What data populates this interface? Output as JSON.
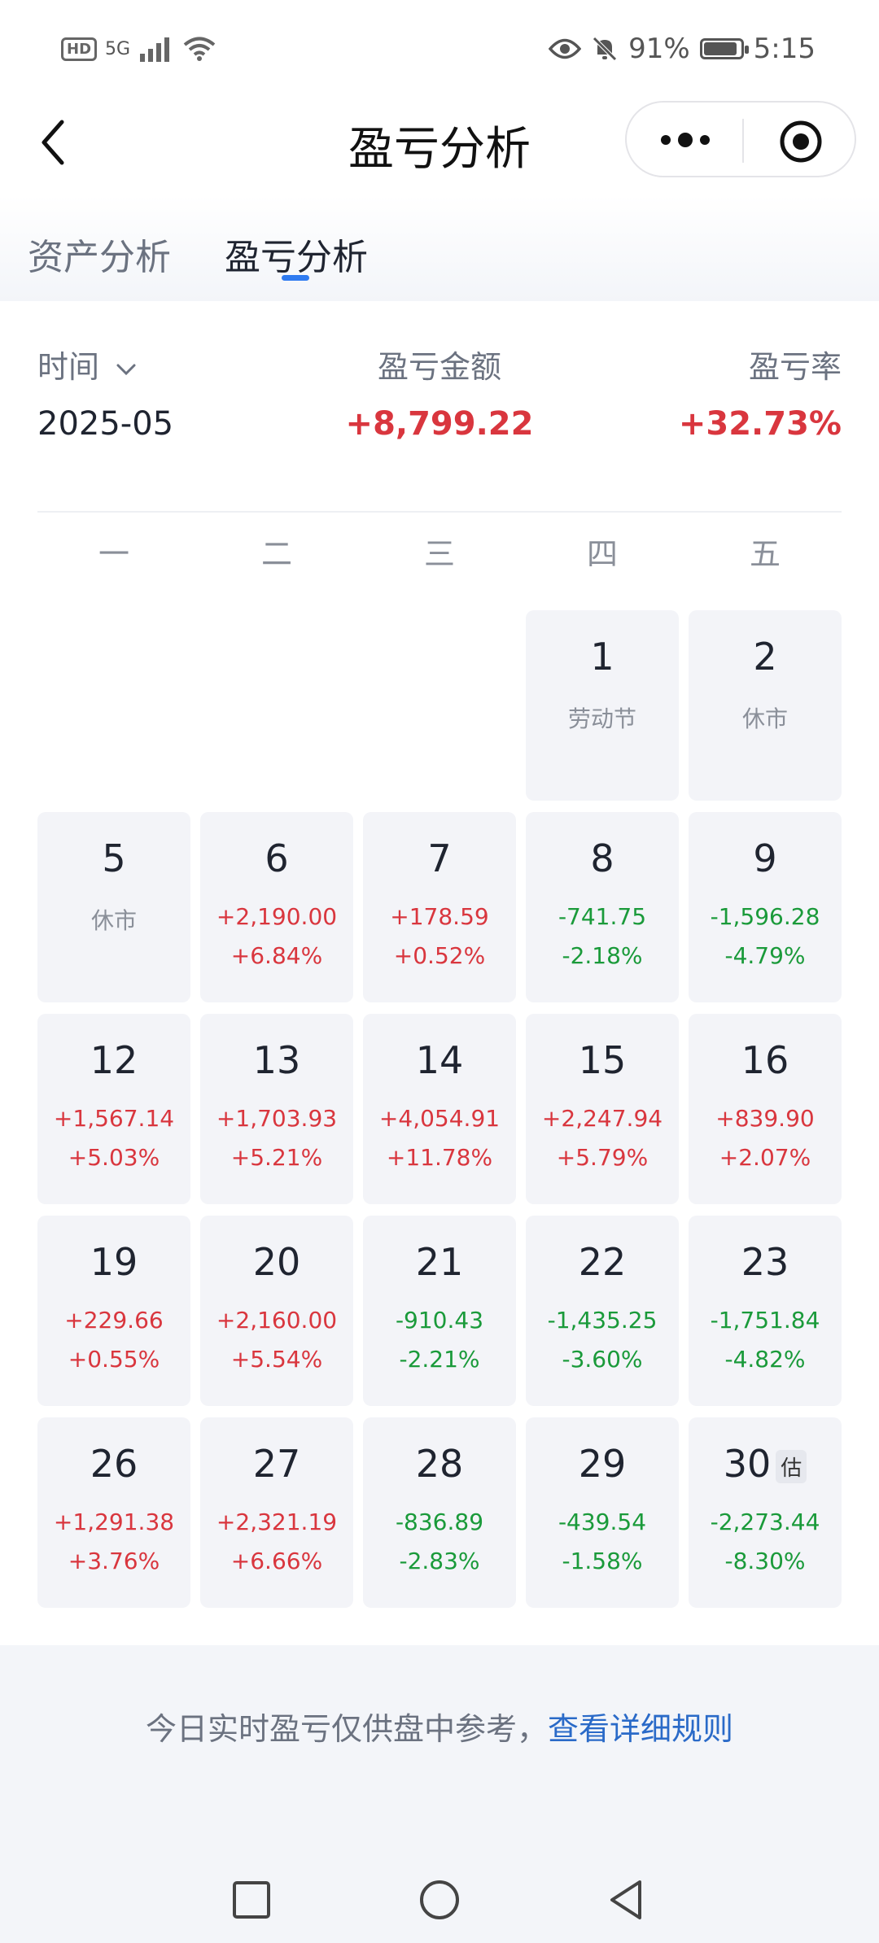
{
  "status_bar": {
    "hd": "HD",
    "net": "5G",
    "battery_pct": "91%",
    "battery_level": 0.91,
    "time": "5:15"
  },
  "nav": {
    "title": "盈亏分析"
  },
  "tabs": [
    {
      "label": "资产分析"
    },
    {
      "label": "盈亏分析"
    }
  ],
  "summary": {
    "time_label": "时间",
    "amount_label": "盈亏金额",
    "rate_label": "盈亏率",
    "month": "2025-05",
    "amount": "+8,799.22",
    "rate": "+32.73%"
  },
  "weekdays": [
    "一",
    "二",
    "三",
    "四",
    "五"
  ],
  "calendar": [
    {
      "day": "1",
      "note": "劳动节"
    },
    {
      "day": "2",
      "note": "休市"
    },
    {
      "day": "5",
      "note": "休市"
    },
    {
      "day": "6",
      "amount": "+2,190.00",
      "pct": "+6.84%",
      "trend": "up"
    },
    {
      "day": "7",
      "amount": "+178.59",
      "pct": "+0.52%",
      "trend": "up"
    },
    {
      "day": "8",
      "amount": "-741.75",
      "pct": "-2.18%",
      "trend": "down"
    },
    {
      "day": "9",
      "amount": "-1,596.28",
      "pct": "-4.79%",
      "trend": "down"
    },
    {
      "day": "12",
      "amount": "+1,567.14",
      "pct": "+5.03%",
      "trend": "up"
    },
    {
      "day": "13",
      "amount": "+1,703.93",
      "pct": "+5.21%",
      "trend": "up"
    },
    {
      "day": "14",
      "amount": "+4,054.91",
      "pct": "+11.78%",
      "trend": "up"
    },
    {
      "day": "15",
      "amount": "+2,247.94",
      "pct": "+5.79%",
      "trend": "up"
    },
    {
      "day": "16",
      "amount": "+839.90",
      "pct": "+2.07%",
      "trend": "up"
    },
    {
      "day": "19",
      "amount": "+229.66",
      "pct": "+0.55%",
      "trend": "up"
    },
    {
      "day": "20",
      "amount": "+2,160.00",
      "pct": "+5.54%",
      "trend": "up"
    },
    {
      "day": "21",
      "amount": "-910.43",
      "pct": "-2.21%",
      "trend": "down"
    },
    {
      "day": "22",
      "amount": "-1,435.25",
      "pct": "-3.60%",
      "trend": "down"
    },
    {
      "day": "23",
      "amount": "-1,751.84",
      "pct": "-4.82%",
      "trend": "down"
    },
    {
      "day": "26",
      "amount": "+1,291.38",
      "pct": "+3.76%",
      "trend": "up"
    },
    {
      "day": "27",
      "amount": "+2,321.19",
      "pct": "+6.66%",
      "trend": "up"
    },
    {
      "day": "28",
      "amount": "-836.89",
      "pct": "-2.83%",
      "trend": "down"
    },
    {
      "day": "29",
      "amount": "-439.54",
      "pct": "-1.58%",
      "trend": "down"
    },
    {
      "day": "30",
      "badge": "估",
      "amount": "-2,273.44",
      "pct": "-8.30%",
      "trend": "down"
    }
  ],
  "footer": {
    "text": "今日实时盈亏仅供盘中参考，",
    "link": "查看详细规则"
  },
  "colors": {
    "up": "#d9363e",
    "down": "#1a9a3a",
    "accent": "#2f7bf0",
    "link": "#2a6ac8"
  }
}
